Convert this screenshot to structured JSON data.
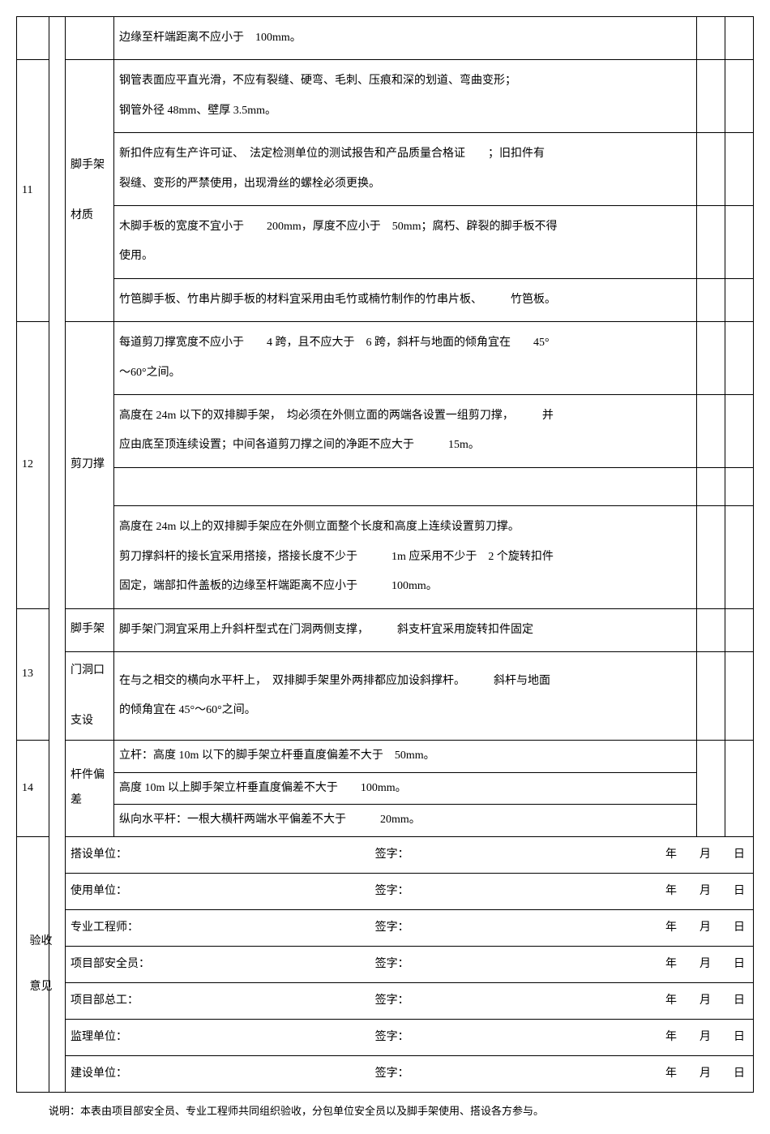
{
  "rows": {
    "r10_frag": {
      "content": "边缘至杆端距离不应小于　100mm。"
    },
    "r11": {
      "num": "11",
      "label": "脚手架\n\n材质",
      "c1": "钢管表面应平直光滑，不应有裂缝、硬弯、毛刺、压痕和深的划道、弯曲变形；",
      "c2": "钢管外径 48mm、壁厚 3.5mm。",
      "c3": "新扣件应有生产许可证、　法定检测单位的测试报告和产品质量合格证　　；旧扣件有",
      "c4": "裂缝、变形的严禁使用，出现滑丝的螺栓必须更换。",
      "c5": "木脚手板的宽度不宜小于　　200mm，厚度不应小于　50mm；腐朽、辟裂的脚手板不得",
      "c6": "使用。",
      "c7": "竹笆脚手板、竹串片脚手板的材料宜采用由毛竹或楠竹制作的竹串片板、　　　竹笆板。"
    },
    "r12": {
      "num": "12",
      "label": "剪刀撑",
      "c1": "每道剪刀撑宽度不应小于　　4 跨，且不应大于　6 跨，斜杆与地面的倾角宜在　　45°",
      "c2": "～60°之间。",
      "c3": "高度在 24m 以下的双排脚手架，　均必须在外侧立面的两端各设置一组剪刀撑，　　　并",
      "c4": "应由底至顶连续设置；中间各道剪刀撑之间的净距不应大于　　　15m。",
      "c5": "高度在 24m 以上的双排脚手架应在外侧立面整个长度和高度上连续设置剪刀撑。",
      "c6": "剪刀撑斜杆的接长宜采用搭接，搭接长度不少于　　　1m 应采用不少于　2 个旋转扣件",
      "c7": "固定，端部扣件盖板的边缘至杆端距离不应小于　　　100mm。"
    },
    "r13": {
      "num": "13",
      "label1": "脚手架",
      "label2": "门洞口\n\n支设",
      "c1": "脚手架门洞宜采用上升斜杆型式在门洞两侧支撑，　　　斜支杆宜采用旋转扣件固定",
      "c2": "在与之相交的横向水平杆上，　双排脚手架里外两排都应加设斜撑杆。　　　斜杆与地面",
      "c3": "的倾角宜在 45°～60°之间。"
    },
    "r14": {
      "num": "14",
      "label": "杆件偏\n差",
      "c1": "立杆：高度 10m 以下的脚手架立杆垂直度偏差不大于　50mm。",
      "c2": "高度 10m 以上脚手架立杆垂直度偏差不大于　　100mm。",
      "c3": "纵向水平杆：一根大横杆两端水平偏差不大于　　　20mm。"
    }
  },
  "acceptance": {
    "label": "验收\n\n意见",
    "sig_label": "签字：",
    "date_suffix": "年　　月　　日",
    "rows": [
      "搭设单位：",
      "使用单位：",
      "专业工程师：",
      "项目部安全员：",
      "项目部总工：",
      "监理单位：",
      "建设单位："
    ]
  },
  "note": "说明：本表由项目部安全员、专业工程师共同组织验收，分包单位安全员以及脚手架使用、搭设各方参与。"
}
